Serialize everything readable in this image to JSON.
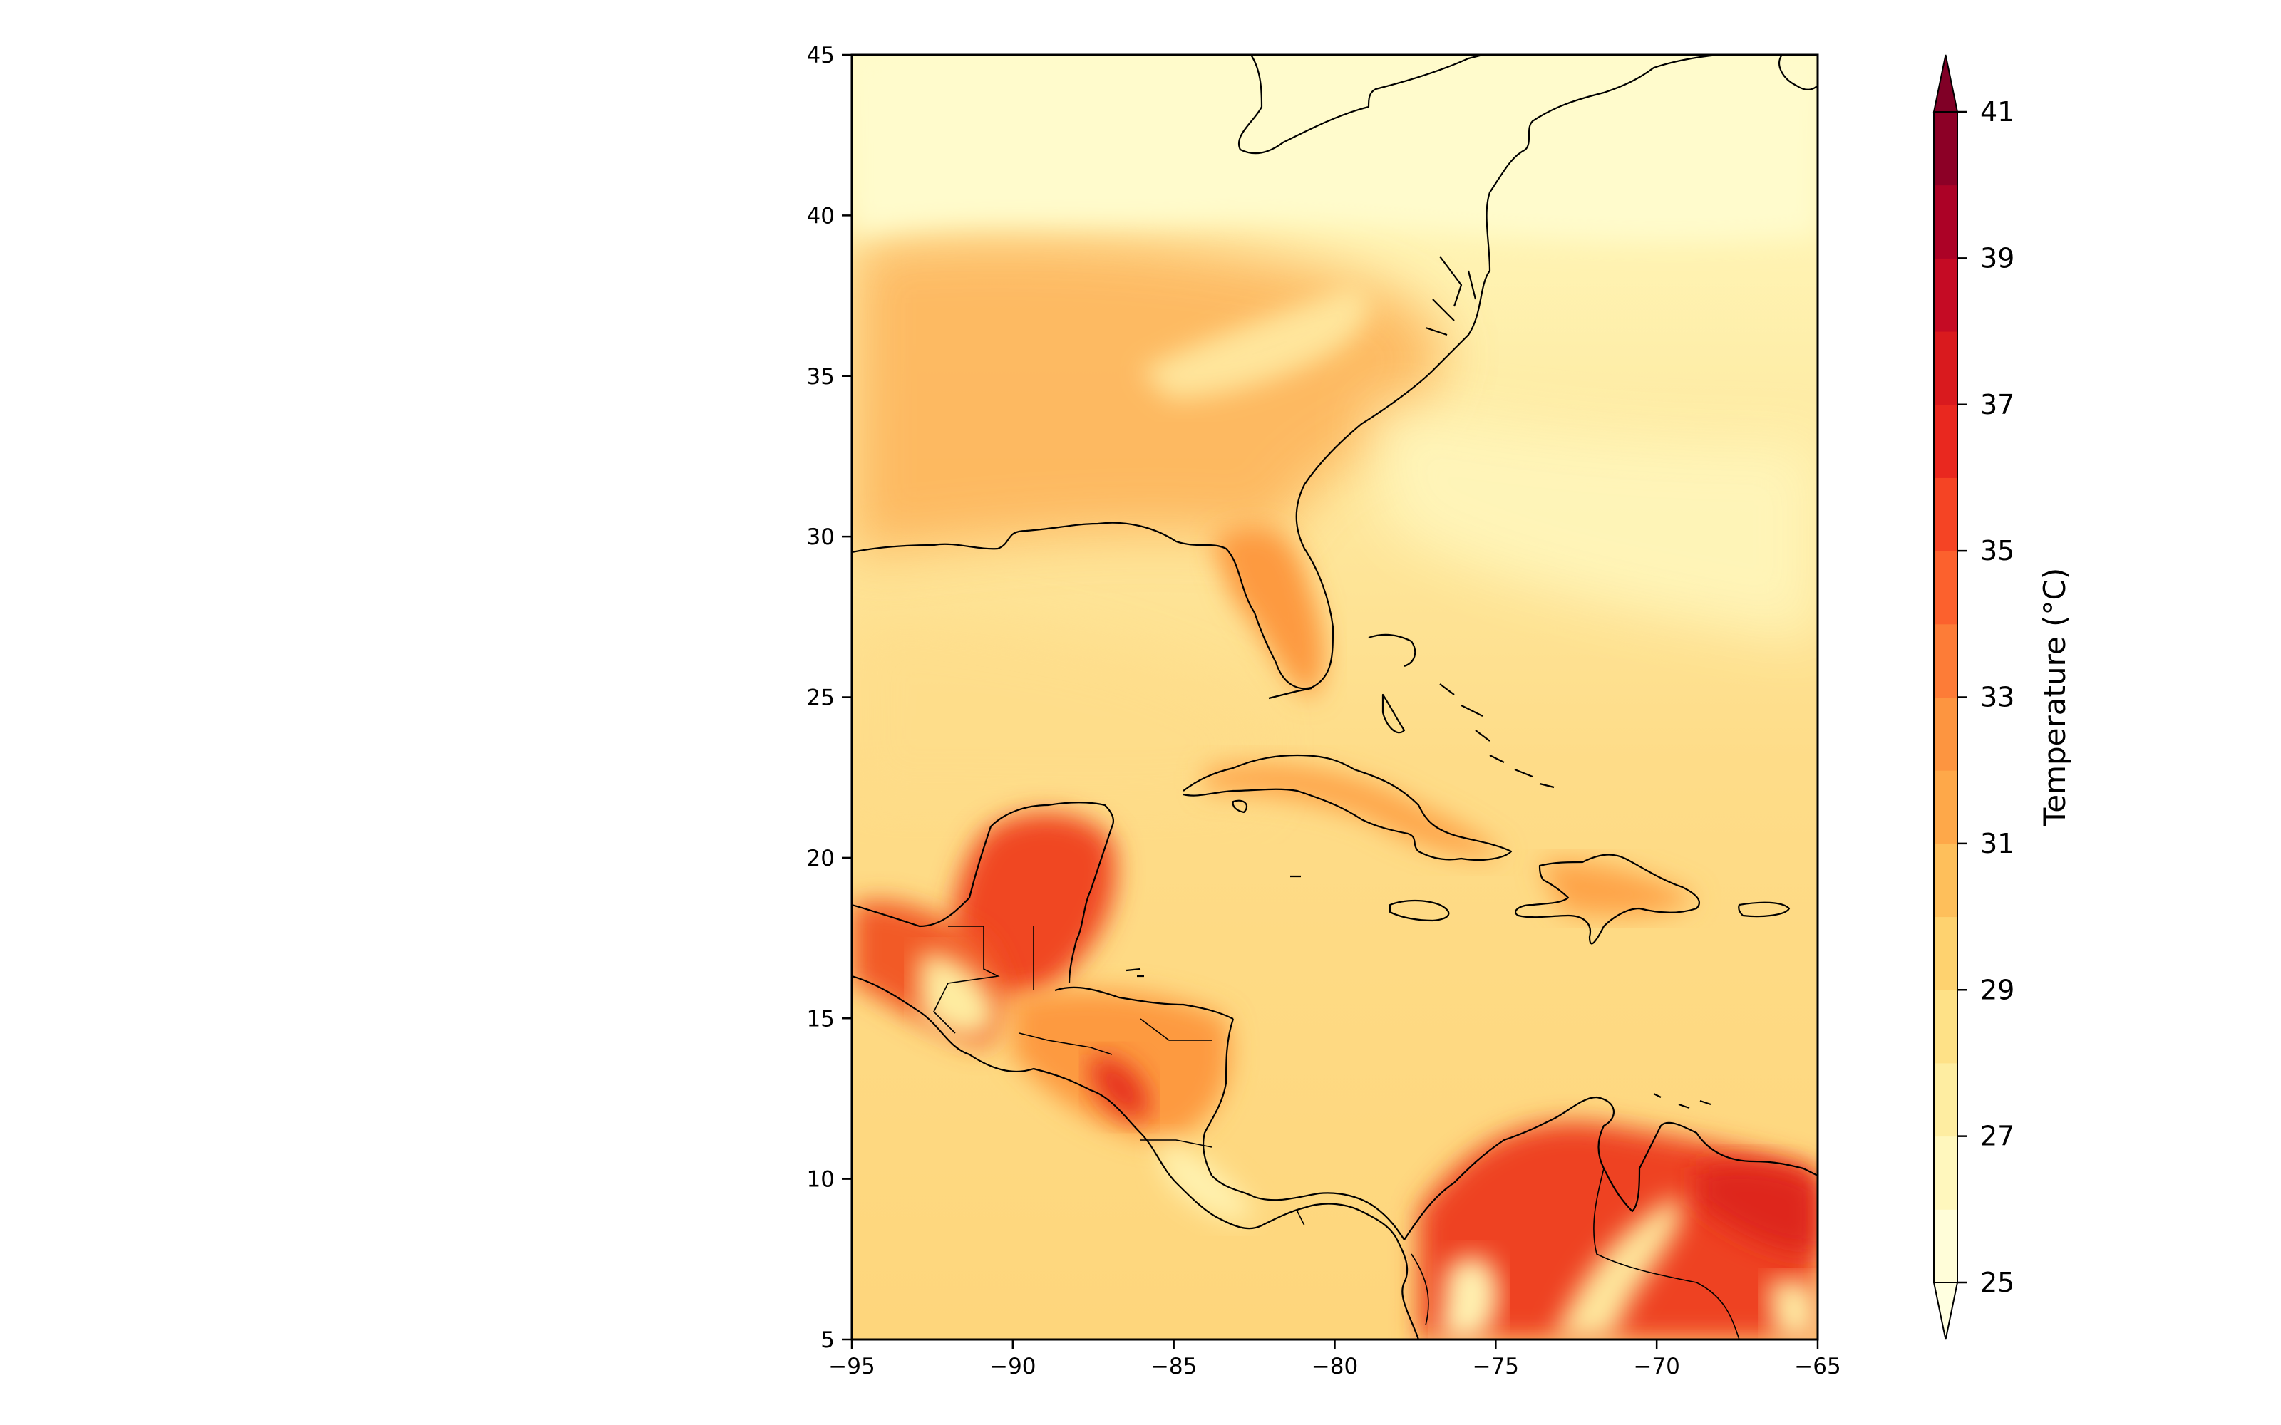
{
  "map": {
    "lon_range": [
      -95,
      -65
    ],
    "lat_range": [
      5,
      45
    ],
    "x_ticks": [
      "−95",
      "−90",
      "−85",
      "−80",
      "−75",
      "−70",
      "−65"
    ],
    "y_ticks": [
      "5",
      "10",
      "15",
      "20",
      "25",
      "30",
      "35",
      "40",
      "45"
    ],
    "y_tick_values": [
      5,
      10,
      15,
      20,
      25,
      30,
      35,
      40,
      45
    ],
    "x_tick_values": [
      -95,
      -90,
      -85,
      -80,
      -75,
      -70,
      -65
    ]
  },
  "colorbar": {
    "label": "Temperature (°C)",
    "min": 25,
    "max": 41,
    "step": 1,
    "tick_labels": [
      "25",
      "27",
      "29",
      "31",
      "33",
      "35",
      "37",
      "39",
      "41"
    ],
    "tick_values": [
      25,
      27,
      29,
      31,
      33,
      35,
      37,
      39,
      41
    ],
    "colors": [
      "#fffdd8",
      "#fff7bd",
      "#feeda1",
      "#fee187",
      "#fed26f",
      "#febf5b",
      "#fea849",
      "#fd9540",
      "#fd7c37",
      "#fc612d",
      "#f54424",
      "#e9281f",
      "#d91a1e",
      "#c50b24",
      "#ac0226",
      "#8c0026"
    ],
    "extend": "both"
  }
}
